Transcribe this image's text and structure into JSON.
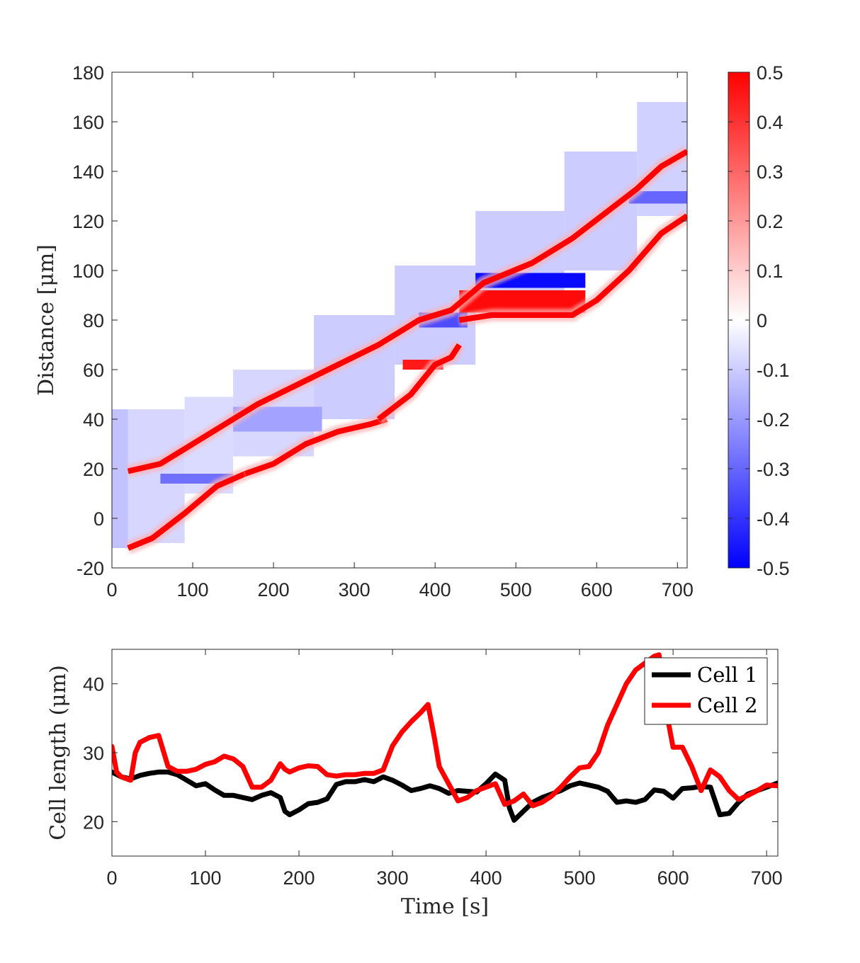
{
  "chart_data": [
    {
      "type": "heatmap",
      "ylabel": "Distance [μm]",
      "xlabel": "",
      "xlim": [
        0,
        712
      ],
      "ylim": [
        -20,
        180
      ],
      "xticks": [
        "0",
        "100",
        "200",
        "300",
        "400",
        "500",
        "600",
        "700"
      ],
      "yticks": [
        "-20",
        "0",
        "20",
        "40",
        "60",
        "80",
        "100",
        "120",
        "140",
        "160",
        "180"
      ],
      "colorbar": {
        "range": [
          -0.5,
          0.5
        ],
        "ticks": [
          "-0.5",
          "-0.4",
          "-0.3",
          "-0.2",
          "-0.1",
          "0",
          "0.1",
          "0.2",
          "0.3",
          "0.4",
          "0.5"
        ],
        "colors": {
          "low": "#0000ff",
          "mid": "#ffffff",
          "high": "#ff0000"
        }
      },
      "regions": [
        {
          "x0": 0,
          "x1": 20,
          "y0": -12,
          "y1": 44,
          "value": -0.12
        },
        {
          "x0": 20,
          "x1": 90,
          "y0": -10,
          "y1": 44,
          "value": -0.08
        },
        {
          "x0": 90,
          "x1": 150,
          "y0": 10,
          "y1": 49,
          "value": -0.07
        },
        {
          "x0": 150,
          "x1": 250,
          "y0": 25,
          "y1": 60,
          "value": -0.08
        },
        {
          "x0": 250,
          "x1": 350,
          "y0": 40,
          "y1": 82,
          "value": -0.1
        },
        {
          "x0": 350,
          "x1": 450,
          "y0": 62,
          "y1": 102,
          "value": -0.1
        },
        {
          "x0": 450,
          "x1": 560,
          "y0": 84,
          "y1": 124,
          "value": -0.1
        },
        {
          "x0": 560,
          "x1": 650,
          "y0": 100,
          "y1": 148,
          "value": -0.1
        },
        {
          "x0": 650,
          "x1": 712,
          "y0": 122,
          "y1": 168,
          "value": -0.09
        },
        {
          "x0": 150,
          "x1": 260,
          "y0": 35,
          "y1": 45,
          "value": -0.18
        },
        {
          "x0": 60,
          "x1": 150,
          "y0": 14,
          "y1": 18,
          "value": -0.28
        },
        {
          "x0": 380,
          "x1": 440,
          "y0": 77,
          "y1": 83,
          "value": -0.35
        },
        {
          "x0": 450,
          "x1": 586,
          "y0": 93,
          "y1": 99,
          "value": -0.48
        },
        {
          "x0": 640,
          "x1": 712,
          "y0": 127,
          "y1": 132,
          "value": -0.3
        },
        {
          "x0": 430,
          "x1": 586,
          "y0": 83,
          "y1": 92,
          "value": 0.48
        },
        {
          "x0": 360,
          "x1": 410,
          "y0": 60,
          "y1": 64,
          "value": 0.45
        }
      ],
      "fronts": [
        {
          "x": [
            20,
            60,
            100,
            140,
            180,
            230,
            280,
            330,
            380,
            420,
            460,
            520,
            570,
            610,
            650,
            680,
            712
          ],
          "y": [
            19,
            22,
            30,
            38,
            46,
            54,
            62,
            70,
            80,
            84,
            95,
            103,
            113,
            123,
            133,
            142,
            148
          ]
        },
        {
          "x": [
            20,
            50,
            90,
            130,
            165
          ],
          "y": [
            -12,
            -8,
            2,
            13,
            18
          ]
        },
        {
          "x": [
            165,
            200,
            240,
            280,
            320,
            340
          ],
          "y": [
            18,
            22,
            30,
            35,
            38,
            40
          ]
        },
        {
          "x": [
            330,
            370,
            400,
            420,
            430
          ],
          "y": [
            40,
            50,
            62,
            65,
            70
          ]
        },
        {
          "x": [
            430,
            470,
            520,
            570,
            600,
            640,
            680,
            712
          ],
          "y": [
            80,
            82,
            82,
            82,
            88,
            100,
            115,
            122
          ]
        }
      ]
    },
    {
      "type": "line",
      "xlabel": "Time [s]",
      "ylabel": "Cell length (μm)",
      "xlim": [
        0,
        712
      ],
      "ylim": [
        15,
        45
      ],
      "xticks": [
        "0",
        "100",
        "200",
        "300",
        "400",
        "500",
        "600",
        "700"
      ],
      "yticks": [
        "20",
        "30",
        "40"
      ],
      "legend_position": "top-right",
      "series": [
        {
          "name": "Cell 1",
          "color": "#000000",
          "x": [
            0,
            10,
            20,
            30,
            40,
            50,
            60,
            70,
            80,
            90,
            100,
            110,
            120,
            130,
            140,
            150,
            160,
            170,
            180,
            185,
            190,
            200,
            210,
            220,
            230,
            240,
            250,
            260,
            270,
            280,
            290,
            300,
            310,
            320,
            330,
            340,
            350,
            360,
            370,
            380,
            390,
            400,
            410,
            420,
            425,
            430,
            440,
            450,
            460,
            470,
            480,
            490,
            500,
            510,
            520,
            530,
            540,
            550,
            560,
            570,
            580,
            590,
            600,
            610,
            620,
            630,
            640,
            650,
            660,
            670,
            680,
            690,
            700,
            712
          ],
          "y": [
            27.2,
            26.5,
            26.2,
            26.7,
            27.0,
            27.2,
            27.2,
            26.8,
            26.0,
            25.2,
            25.5,
            24.6,
            23.8,
            23.8,
            23.5,
            23.2,
            23.8,
            24.2,
            23.5,
            21.5,
            21.0,
            21.7,
            22.6,
            22.8,
            23.3,
            25.4,
            25.8,
            25.8,
            26.1,
            25.8,
            26.5,
            26.0,
            25.3,
            24.5,
            24.8,
            25.2,
            24.8,
            24.1,
            24.5,
            24.4,
            24.3,
            25.5,
            26.9,
            26.0,
            22.0,
            20.2,
            21.5,
            22.8,
            23.5,
            24.0,
            24.5,
            25.2,
            25.6,
            25.3,
            25.0,
            24.4,
            22.8,
            23.0,
            22.8,
            23.2,
            24.6,
            24.4,
            23.4,
            24.8,
            24.9,
            25.1,
            25.0,
            21.0,
            21.2,
            22.8,
            24.0,
            24.5,
            25.0,
            25.6
          ]
        },
        {
          "name": "Cell 2",
          "color": "#ff0000",
          "x": [
            0,
            5,
            10,
            20,
            25,
            30,
            40,
            50,
            60,
            70,
            80,
            90,
            100,
            110,
            120,
            130,
            140,
            150,
            160,
            170,
            180,
            185,
            190,
            200,
            210,
            220,
            230,
            240,
            250,
            260,
            270,
            280,
            290,
            300,
            310,
            320,
            330,
            338,
            345,
            350,
            360,
            370,
            380,
            390,
            400,
            410,
            420,
            430,
            440,
            450,
            460,
            470,
            480,
            490,
            500,
            510,
            520,
            530,
            540,
            550,
            560,
            570,
            580,
            585,
            590,
            600,
            610,
            620,
            630,
            640,
            650,
            660,
            670,
            680,
            690,
            700,
            712
          ],
          "y": [
            30.9,
            27.2,
            26.5,
            26.0,
            30.0,
            31.5,
            32.2,
            32.5,
            28.0,
            27.3,
            27.3,
            27.6,
            28.3,
            28.7,
            29.5,
            29.1,
            28.0,
            25.0,
            25.0,
            26.0,
            28.4,
            27.6,
            27.2,
            27.8,
            28.1,
            28.0,
            26.8,
            26.6,
            26.8,
            26.8,
            27.0,
            27.0,
            27.5,
            31.0,
            33.0,
            34.5,
            35.8,
            37.0,
            32.0,
            28.0,
            25.5,
            23.0,
            23.5,
            24.5,
            25.0,
            25.5,
            22.5,
            23.0,
            24.0,
            22.3,
            22.8,
            23.7,
            25.0,
            26.5,
            27.8,
            28.0,
            30.0,
            34.0,
            37.0,
            40.0,
            42.0,
            43.0,
            44.0,
            44.2,
            38.0,
            30.8,
            30.8,
            28.0,
            24.5,
            27.5,
            26.5,
            24.5,
            23.2,
            23.8,
            24.5,
            25.3,
            25.2
          ]
        }
      ]
    }
  ]
}
